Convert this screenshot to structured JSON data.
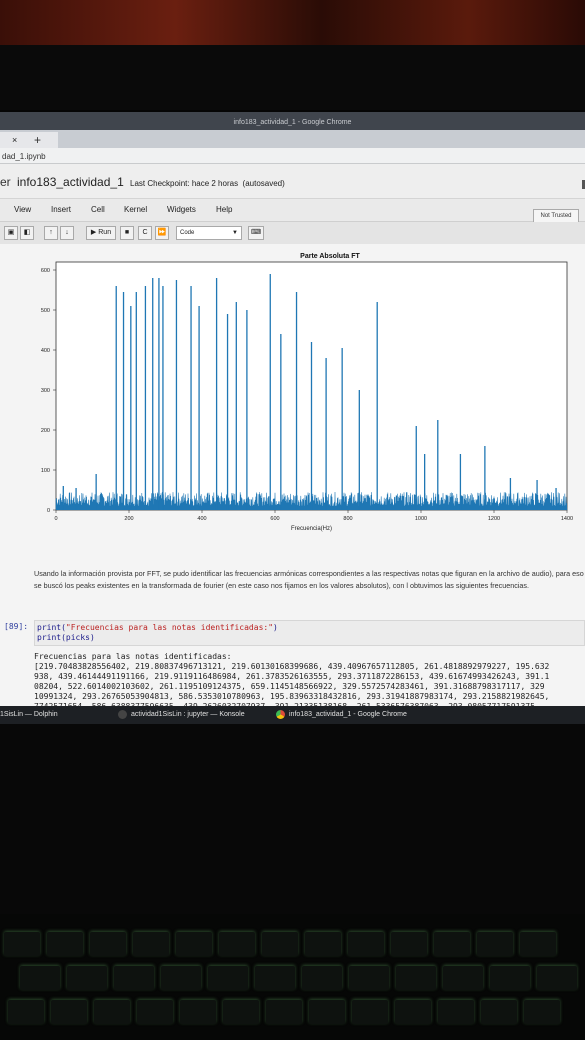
{
  "window": {
    "title": "info183_actividad_1 - Google Chrome"
  },
  "tab": {
    "label": "×",
    "plus": "+"
  },
  "address": {
    "text": "dad_1.ipynb"
  },
  "notebook": {
    "brand": "er",
    "title": "info183_actividad_1",
    "checkpoint": "Last Checkpoint: hace 2 horas",
    "autosaved": "(autosaved)",
    "not_trusted": "Not Trusted"
  },
  "menu": [
    "View",
    "Insert",
    "Cell",
    "Kernel",
    "Widgets",
    "Help"
  ],
  "toolbar": {
    "run_label": "Run",
    "cell_type": "Code"
  },
  "chart_data": {
    "type": "line",
    "title": "Parte Absoluta FT",
    "xlabel": "Frecuencia(Hz)",
    "ylabel": "",
    "xlim": [
      0,
      1400
    ],
    "ylim": [
      0,
      620
    ],
    "xticks": [
      0,
      200,
      400,
      600,
      800,
      1000,
      1200,
      1400
    ],
    "yticks": [
      0,
      100,
      200,
      300,
      400,
      500,
      600
    ],
    "color": "#1f77b4",
    "peaks": [
      {
        "x": 20,
        "y": 60
      },
      {
        "x": 55,
        "y": 55
      },
      {
        "x": 110,
        "y": 90
      },
      {
        "x": 165,
        "y": 560
      },
      {
        "x": 185,
        "y": 545
      },
      {
        "x": 205,
        "y": 510
      },
      {
        "x": 220,
        "y": 545
      },
      {
        "x": 245,
        "y": 560
      },
      {
        "x": 265,
        "y": 580
      },
      {
        "x": 282,
        "y": 580
      },
      {
        "x": 293,
        "y": 560
      },
      {
        "x": 330,
        "y": 575
      },
      {
        "x": 370,
        "y": 560
      },
      {
        "x": 392,
        "y": 510
      },
      {
        "x": 440,
        "y": 580
      },
      {
        "x": 470,
        "y": 490
      },
      {
        "x": 494,
        "y": 520
      },
      {
        "x": 523,
        "y": 500
      },
      {
        "x": 587,
        "y": 590
      },
      {
        "x": 616,
        "y": 440
      },
      {
        "x": 659,
        "y": 545
      },
      {
        "x": 700,
        "y": 420
      },
      {
        "x": 740,
        "y": 380
      },
      {
        "x": 784,
        "y": 405
      },
      {
        "x": 831,
        "y": 300
      },
      {
        "x": 880,
        "y": 520
      },
      {
        "x": 987,
        "y": 210
      },
      {
        "x": 1010,
        "y": 140
      },
      {
        "x": 1046,
        "y": 225
      },
      {
        "x": 1108,
        "y": 140
      },
      {
        "x": 1175,
        "y": 160
      },
      {
        "x": 1245,
        "y": 80
      },
      {
        "x": 1318,
        "y": 75
      },
      {
        "x": 1370,
        "y": 55
      }
    ]
  },
  "text": {
    "paragraph": "Usando la información provista por FFT, se pudo identificar las frecuencias armónicas correspondientes a las respectivas notas que figuran en la archivo de audio), para eso se buscó los peaks existentes en la transformada de fourier (en este caso nos fijamos en los valores absolutos), con l obtuvimos las siguientes frecuencias."
  },
  "cell": {
    "prompt": "[89]:",
    "code_line1_fn": "print(",
    "code_line1_str": "\"Frecuencias para las notas identificadas:\"",
    "code_line1_end": ")",
    "code_line2": "print(picks)",
    "output": "Frecuencias para las notas identificadas:\n[219.70483828556402, 219.80837496713121, 219.60130168399686, 439.40967657112805, 261.4818892979227, 195.632\n938, 439.46144491191166, 219.9119116486984, 261.3783526163555, 293.3711872286153, 439.61674993426243, 391.1\n08204, 522.6014002103602, 261.1195109124375, 659.1145148566922, 329.5572574283461, 391.31688798317117, 329\n10991324, 293.26765053904813, 586.5353010780963, 195.83963318432816, 293.31941887983174, 293.2158821982645,\n7742571654, 586.6388377596635, 439.2626032707937, 391.21335138168, 261.5336576387063, 293.08057717591375,"
  },
  "taskbar": [
    {
      "label": "1SisLin — Dolphin",
      "color": "#3b7fd4"
    },
    {
      "label": "actividad1SisLin : jupyter — Konsole",
      "color": "#444"
    },
    {
      "label": "info183_actividad_1 - Google Chrome",
      "color": "#dd4b39"
    }
  ]
}
